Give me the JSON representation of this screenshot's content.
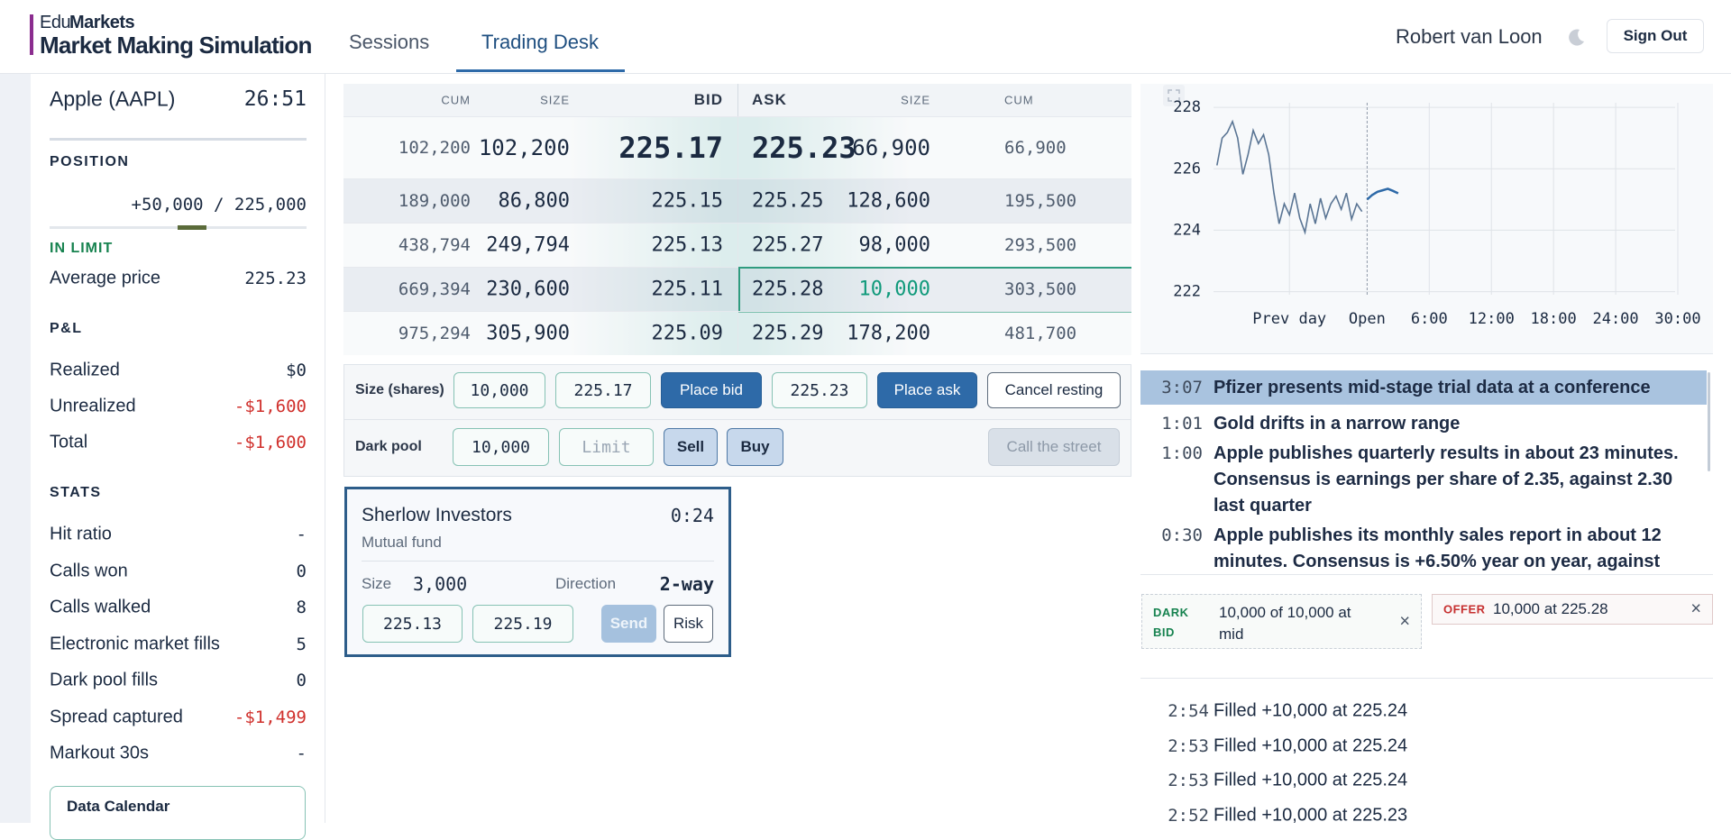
{
  "header": {
    "brand_prefix": "Edu",
    "brand": "Markets",
    "title": "Market Making Simulation",
    "tabs": [
      "Sessions",
      "Trading Desk"
    ],
    "user": "Robert van Loon",
    "sign_out": "Sign Out"
  },
  "sidebar": {
    "instrument": "Apple (AAPL)",
    "clock": "26:51",
    "position_heading": "POSITION",
    "position": "+50,000 / 225,000",
    "limit_status": "IN LIMIT",
    "average_price": {
      "label": "Average price",
      "value": "225.23"
    },
    "pnl_heading": "P&L",
    "pnl": [
      {
        "label": "Realized",
        "value": "$0"
      },
      {
        "label": "Unrealized",
        "value": "-$1,600",
        "color": "#d0312d"
      },
      {
        "label": "Total",
        "value": "-$1,600",
        "color": "#d0312d"
      }
    ],
    "stats_heading": "STATS",
    "stats": [
      {
        "label": "Hit ratio",
        "value": "-"
      },
      {
        "label": "Calls won",
        "value": "0"
      },
      {
        "label": "Calls walked",
        "value": "8"
      },
      {
        "label": "Electronic market fills",
        "value": "5"
      },
      {
        "label": "Dark pool fills",
        "value": "0"
      },
      {
        "label": "Spread captured",
        "value": "-$1,499",
        "color": "#d0312d"
      },
      {
        "label": "Markout 30s",
        "value": "-"
      }
    ],
    "calendar": "Data Calendar"
  },
  "order_book": {
    "headers": [
      "CUM",
      "SIZE",
      "BID",
      "ASK",
      "SIZE",
      "CUM"
    ],
    "rows": [
      [
        "102,200",
        "102,200",
        "225.17",
        "225.23",
        "66,900",
        "66,900"
      ],
      [
        "189,000",
        "86,800",
        "225.15",
        "225.25",
        "128,600",
        "195,500"
      ],
      [
        "438,794",
        "249,794",
        "225.13",
        "225.27",
        "98,000",
        "293,500"
      ],
      [
        "669,394",
        "230,600",
        "225.11",
        "225.28",
        "10,000",
        "303,500"
      ],
      [
        "975,294",
        "305,900",
        "225.09",
        "225.29",
        "178,200",
        "481,700"
      ]
    ]
  },
  "controls": {
    "size_label": "Size (shares)",
    "size": "10,000",
    "bid": "225.17",
    "place_bid": "Place bid",
    "ask": "225.23",
    "place_ask": "Place ask",
    "cancel": "Cancel resting",
    "dark_label": "Dark pool",
    "dark_size": "10,000",
    "limit_placeholder": "Limit",
    "sell": "Sell",
    "buy": "Buy",
    "call": "Call the street"
  },
  "client": {
    "name": "Sherlow Investors",
    "timer": "0:24",
    "type": "Mutual fund",
    "size_label": "Size",
    "size": "3,000",
    "direction_label": "Direction",
    "direction": "2-way",
    "bid": "225.13",
    "ask": "225.19",
    "send": "Send",
    "risk": "Risk"
  },
  "chart_data": {
    "type": "line",
    "x": [
      -870,
      -840,
      -810,
      -780,
      -750,
      -720,
      -690,
      -660,
      -630,
      -600,
      -570,
      -540,
      -510,
      -480,
      -450,
      -420,
      -390,
      -360,
      -330,
      -300,
      -270,
      -240,
      -210,
      -180,
      -150,
      -120,
      -90,
      -60,
      -30,
      0,
      30,
      60,
      90,
      120,
      150,
      180
    ],
    "series": [
      {
        "color": "#5a7594",
        "values": [
          226.11,
          227.0,
          227.18,
          227.54,
          227.0,
          225.82,
          226.46,
          227.25,
          226.82,
          227.11,
          226.46,
          225.21,
          224.21,
          224.86,
          224.5,
          225.21,
          224.39,
          223.93,
          224.86,
          224.21,
          225.04,
          224.39,
          224.86,
          225.11,
          224.68,
          225.21,
          224.36,
          224.86,
          224.61,
          null,
          null,
          null,
          null,
          null,
          null,
          null
        ]
      },
      {
        "color": "#2e6aa8",
        "values": [
          null,
          null,
          null,
          null,
          null,
          null,
          null,
          null,
          null,
          null,
          null,
          null,
          null,
          null,
          null,
          null,
          null,
          null,
          null,
          null,
          null,
          null,
          null,
          null,
          null,
          null,
          null,
          null,
          null,
          225.0,
          225.15,
          225.25,
          225.3,
          225.35,
          225.28,
          225.2
        ]
      }
    ],
    "xlim": [
      -890,
      1800
    ],
    "xticks": [
      {
        "value": -450,
        "label": "Prev day"
      },
      {
        "value": 0,
        "label": "Open"
      },
      {
        "value": 360,
        "label": "6:00"
      },
      {
        "value": 720,
        "label": "12:00"
      },
      {
        "value": 1080,
        "label": "18:00"
      },
      {
        "value": 1440,
        "label": "24:00"
      },
      {
        "value": 1800,
        "label": "30:00"
      }
    ],
    "ylim": [
      221.9,
      228.15
    ],
    "yticks": [
      222,
      224,
      226,
      228
    ],
    "grid": true
  },
  "news": [
    {
      "time": "3:07",
      "text": "Pfizer presents mid-stage trial data at a conference"
    },
    {
      "time": "1:01",
      "text": "Gold drifts in a narrow range"
    },
    {
      "time": "1:00",
      "text": "Apple publishes quarterly results in about 23 minutes. Consensus is earnings per share of 2.35, against 2.30 last quarter"
    },
    {
      "time": "0:30",
      "text": "Apple publishes its monthly sales report in about 12 minutes. Consensus is +6.50% year on year, against"
    }
  ],
  "orders": [
    {
      "tag": "DARK BID",
      "text": "10,000 of 10,000 at mid",
      "close": "×"
    },
    {
      "tag": "OFFER",
      "text": "10,000 at 225.28",
      "close": "×"
    }
  ],
  "fills": [
    {
      "time": "2:54",
      "text": "Filled +10,000 at 225.24"
    },
    {
      "time": "2:53",
      "text": "Filled +10,000 at 225.24"
    },
    {
      "time": "2:53",
      "text": "Filled +10,000 at 225.24"
    },
    {
      "time": "2:52",
      "text": "Filled +10,000 at 225.23"
    }
  ]
}
